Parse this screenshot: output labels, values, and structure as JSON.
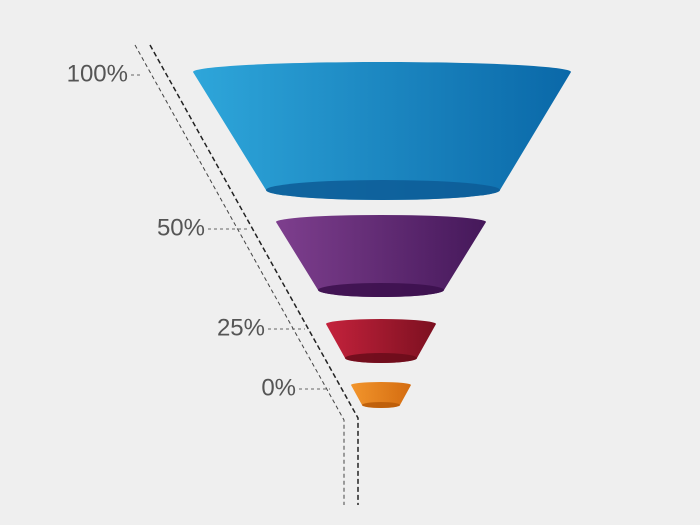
{
  "funnel": {
    "segments": [
      {
        "label": "100%",
        "colors": [
          "#2ea6da",
          "#0a68a8"
        ],
        "rim": "#0d5c96"
      },
      {
        "label": "50%",
        "colors": [
          "#7e3f8e",
          "#45185a"
        ],
        "rim": "#3b0f4c"
      },
      {
        "label": "25%",
        "colors": [
          "#c4223c",
          "#7c1020"
        ],
        "rim": "#6a0c1a"
      },
      {
        "label": "0%",
        "colors": [
          "#f2952c",
          "#d46c10"
        ],
        "rim": "#b85a08"
      }
    ]
  }
}
